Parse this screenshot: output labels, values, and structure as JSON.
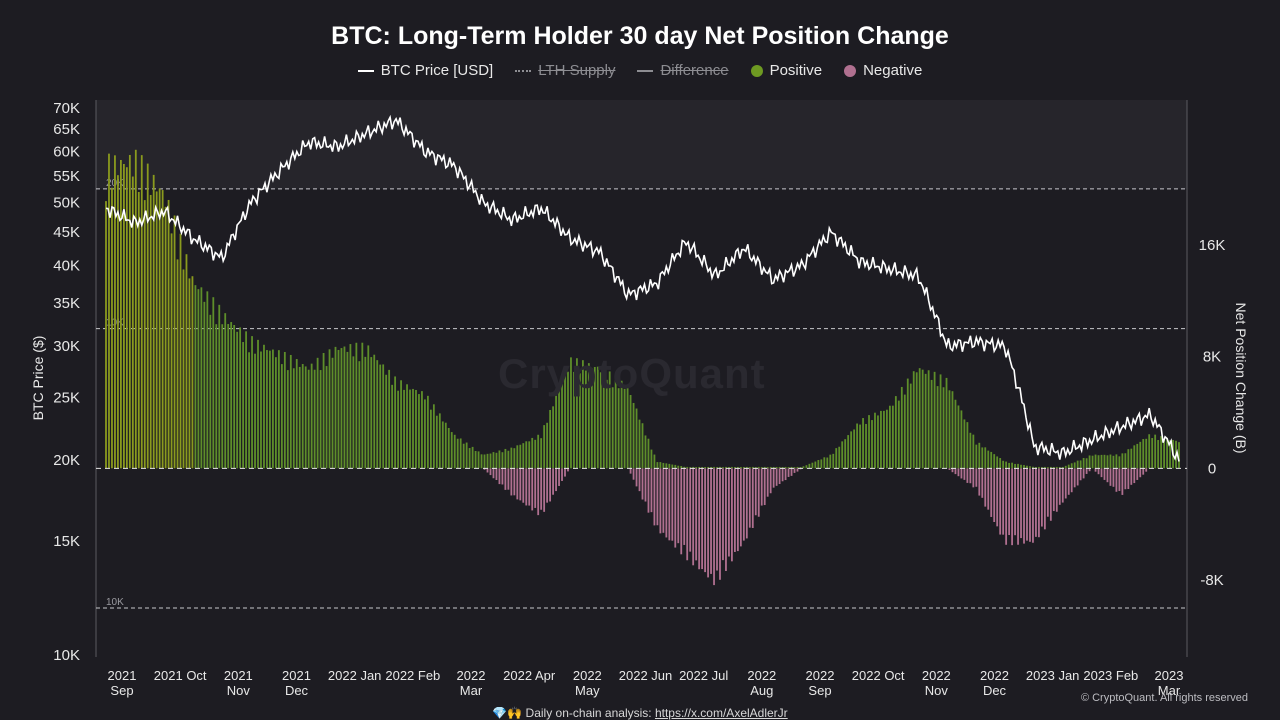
{
  "chart_data": {
    "type": "bar",
    "title": "BTC: Long-Term Holder 30 day Net Position Change",
    "legend": [
      {
        "label": "BTC Price [USD]",
        "kind": "line",
        "color": "#ffffff",
        "enabled": true
      },
      {
        "label": "LTH Supply",
        "kind": "dotted",
        "color": "#8d8d92",
        "enabled": false
      },
      {
        "label": "Difference",
        "kind": "line",
        "color": "#8d8d92",
        "enabled": false
      },
      {
        "label": "Positive",
        "kind": "dot",
        "color": "#6e9a22",
        "enabled": true
      },
      {
        "label": "Negative",
        "kind": "dot",
        "color": "#b07090",
        "enabled": true
      }
    ],
    "ylabel_left": "BTC Price ($)",
    "ylabel_right": "Net Position Change (B)",
    "left_axis_ticks": [
      "70K",
      "65K",
      "60K",
      "55K",
      "50K",
      "45K",
      "40K",
      "35K",
      "30K",
      "25K",
      "20K",
      "15K",
      "10K"
    ],
    "left_axis_values": [
      70000,
      65000,
      60000,
      55000,
      50000,
      45000,
      40000,
      35000,
      30000,
      25000,
      20000,
      15000,
      10000
    ],
    "left_scale": "log",
    "ylim_left": [
      10000,
      70000
    ],
    "right_axis_ticks": [
      "16K",
      "8K",
      "0",
      "-8K"
    ],
    "right_axis_values": [
      16000,
      8000,
      0,
      -8000
    ],
    "ylim_right": [
      -11000,
      24000
    ],
    "x_axis_ticks": [
      [
        "2021",
        "Sep"
      ],
      [
        "2021 Oct"
      ],
      [
        "2021",
        "Nov"
      ],
      [
        "2021",
        "Dec"
      ],
      [
        "2022 Jan"
      ],
      [
        "2022 Feb"
      ],
      [
        "2022",
        "Mar"
      ],
      [
        "2022 Apr"
      ],
      [
        "2022",
        "May"
      ],
      [
        "2022 Jun"
      ],
      [
        "2022 Jul"
      ],
      [
        "2022",
        "Aug"
      ],
      [
        "2022",
        "Sep"
      ],
      [
        "2022 Oct"
      ],
      [
        "2022",
        "Nov"
      ],
      [
        "2022",
        "Dec"
      ],
      [
        "2023 Jan"
      ],
      [
        "2023 Feb"
      ],
      [
        "2023",
        "Mar"
      ]
    ],
    "reference_lines": [
      {
        "label": "20K",
        "value": 20000
      },
      {
        "label": "10K",
        "value": 10000
      },
      {
        "label": "10K",
        "value": -10000
      }
    ],
    "zero_line": true,
    "series": [
      {
        "name": "BTC Price [USD]",
        "x": [
          0,
          0.5,
          1,
          1.5,
          2,
          2.5,
          3,
          3.5,
          4,
          4.5,
          5,
          5.5,
          6,
          6.5,
          7,
          7.5,
          8,
          8.5,
          9,
          9.5,
          10,
          10.5,
          11,
          11.5,
          12,
          12.5,
          13,
          13.5,
          14,
          14.5,
          15,
          15.5,
          16,
          16.5,
          17,
          17.5,
          18,
          18.5
        ],
        "values": [
          49000,
          46500,
          48500,
          44000,
          41000,
          50000,
          56000,
          62000,
          61000,
          64000,
          67000,
          60000,
          57000,
          50000,
          47000,
          49000,
          44000,
          42000,
          36000,
          37500,
          43500,
          38500,
          42500,
          38000,
          40000,
          45000,
          40500,
          39500,
          38500,
          30000,
          30500,
          30000,
          21000,
          20500,
          21500,
          22500,
          23500,
          20000
        ]
      },
      {
        "name": "Positive",
        "x": [
          0,
          0.5,
          1,
          1.5,
          2,
          2.5,
          3,
          3.5,
          4,
          4.5,
          5,
          5.5,
          6,
          6.5,
          7,
          7.5,
          8,
          8.5,
          9,
          9.5,
          10,
          10.5,
          11,
          11.5,
          12,
          12.5,
          13,
          13.5,
          14,
          14.5,
          15,
          15.5,
          16,
          16.5,
          17,
          17.5,
          18,
          18.5
        ],
        "values": [
          22500,
          23000,
          20500,
          14000,
          11500,
          9500,
          8500,
          7500,
          9000,
          9000,
          6500,
          5500,
          2500,
          1000,
          1500,
          2500,
          8000,
          7500,
          6000,
          500,
          100,
          100,
          100,
          100,
          100,
          1000,
          3500,
          4500,
          7500,
          6500,
          2000,
          500,
          100,
          100,
          1000,
          1000,
          2500,
          2000
        ]
      },
      {
        "name": "Negative",
        "x": [
          0,
          0.5,
          1,
          1.5,
          2,
          2.5,
          3,
          3.5,
          4,
          4.5,
          5,
          5.5,
          6,
          6.5,
          7,
          7.5,
          8,
          8.5,
          9,
          9.5,
          10,
          10.5,
          11,
          11.5,
          12,
          12.5,
          13,
          13.5,
          14,
          14.5,
          15,
          15.5,
          16,
          16.5,
          17,
          17.5,
          18,
          18.5
        ],
        "values": [
          0,
          0,
          0,
          0,
          0,
          0,
          0,
          0,
          0,
          0,
          0,
          0,
          0,
          0,
          -2000,
          -3500,
          0,
          0,
          0,
          -4500,
          -6500,
          -8500,
          -5500,
          -1500,
          0,
          0,
          0,
          0,
          0,
          0,
          -1500,
          -5500,
          -5500,
          -2500,
          0,
          -2000,
          0,
          0
        ]
      }
    ]
  },
  "credit": "© CryptoQuant. All rights reserved",
  "watermark": "CryptoQuant",
  "footer": {
    "emoji": "💎🙌",
    "text": "Daily on-chain analysis:",
    "link": "https://x.com/AxelAdlerJr"
  }
}
